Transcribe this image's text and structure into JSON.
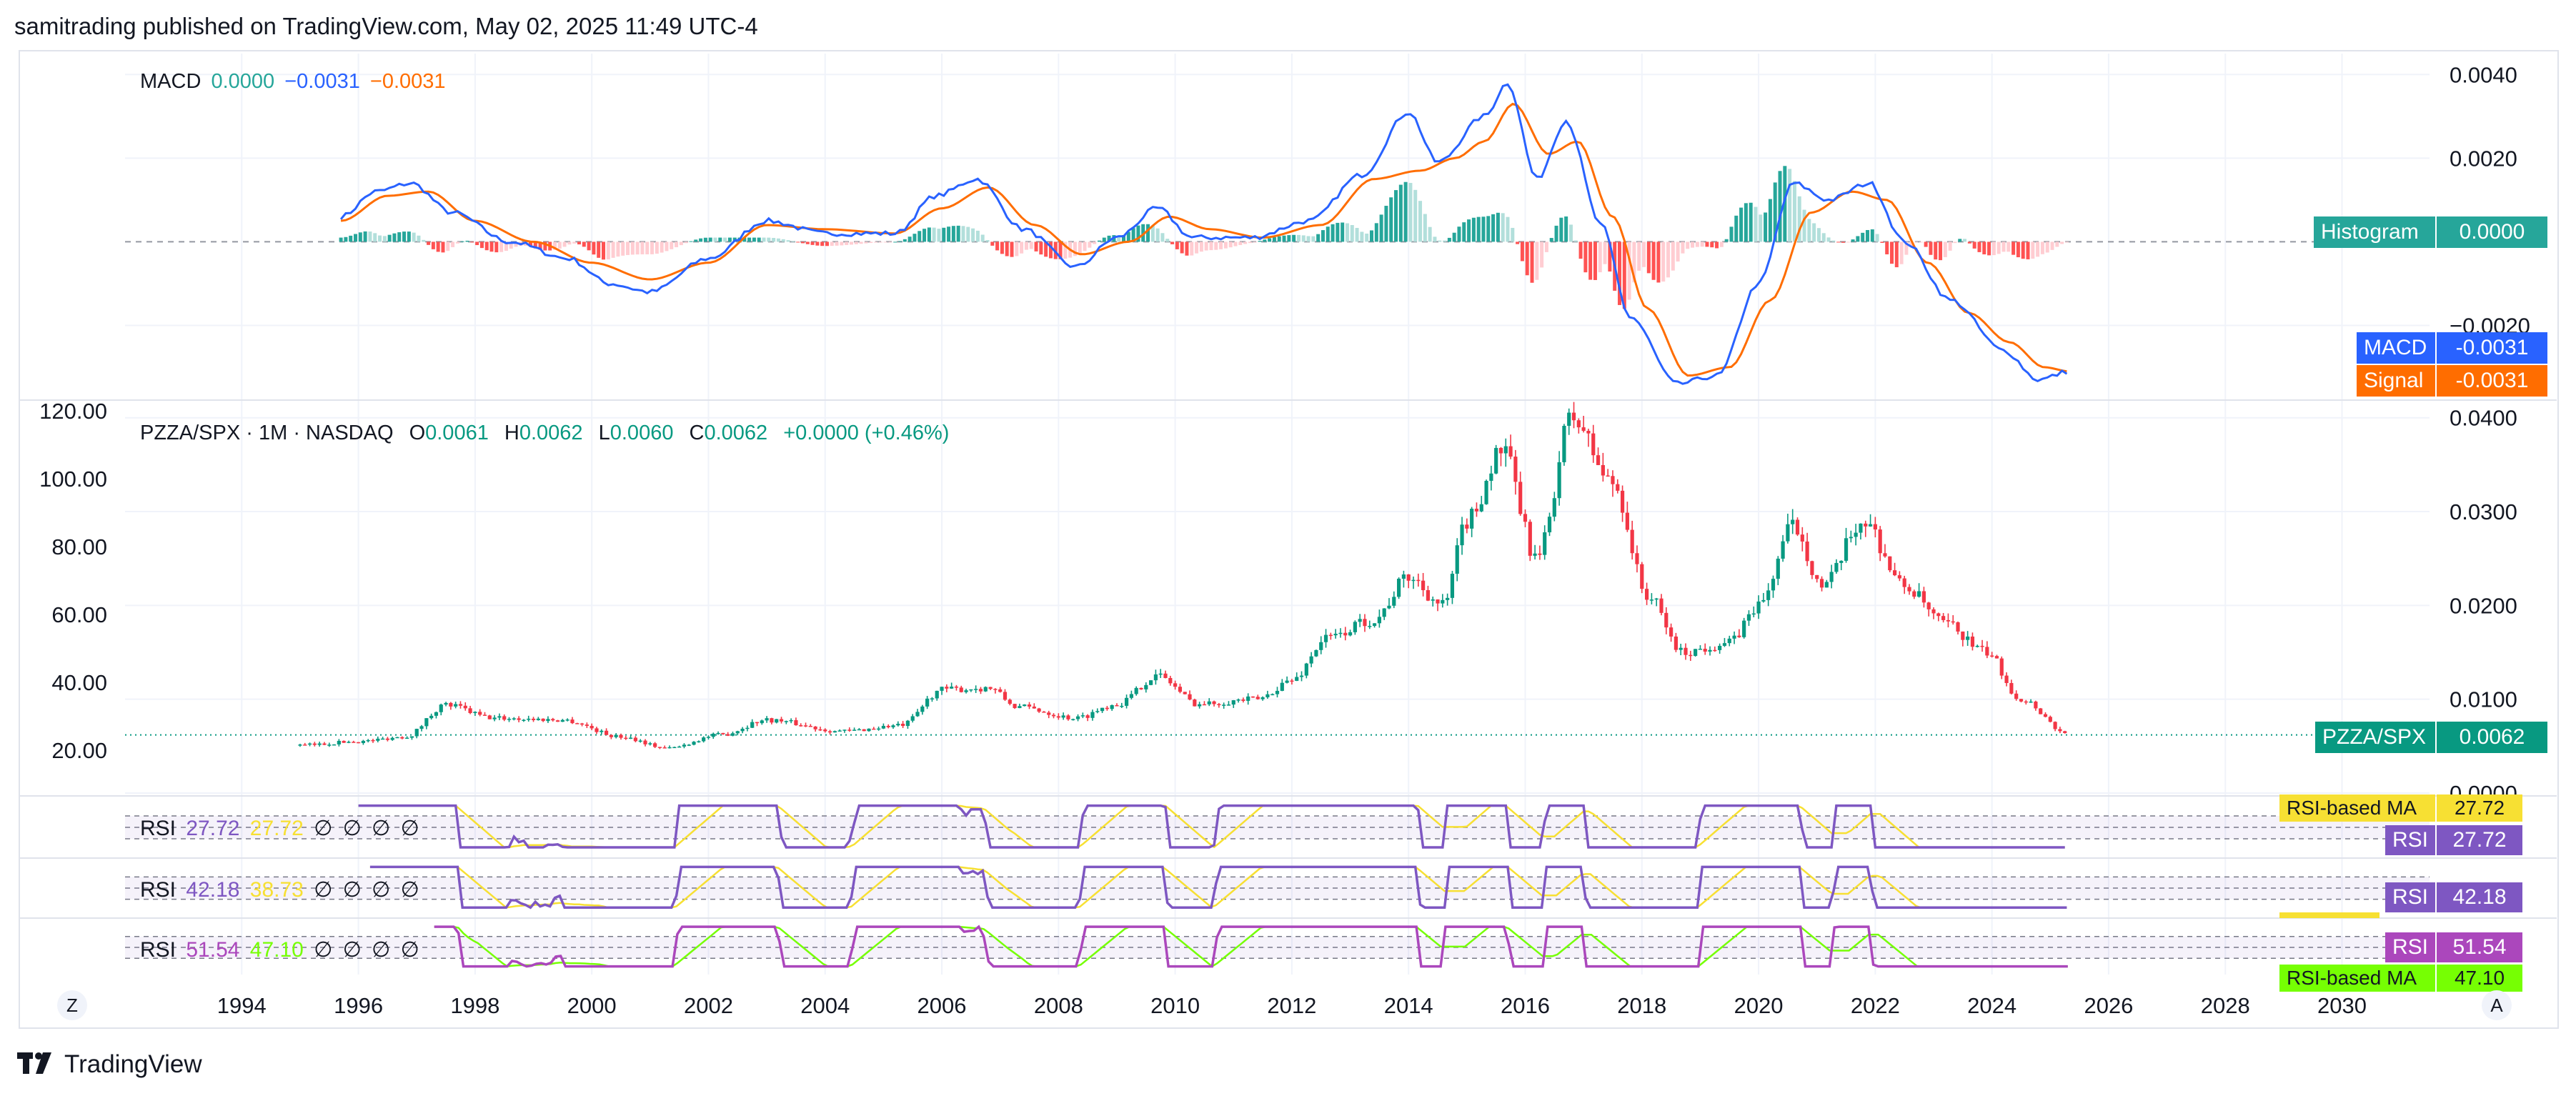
{
  "header": {
    "published": "samitrading published on TradingView.com, May 02, 2025 11:49 UTC-4"
  },
  "footer": {
    "brand": "TradingView",
    "logo": "TV-logo-icon"
  },
  "corners": {
    "left": "Z",
    "right": "A"
  },
  "colors": {
    "up": "#089981",
    "down": "#f23645",
    "macd": "#2962ff",
    "signal": "#ff6d00",
    "rsi": "#7e57c2",
    "rsi_ma": "#f7e033",
    "rsi3": "#ab47bc",
    "rsi3_ma": "#76ff03",
    "hist_up_strong": "#26a69a",
    "hist_up_weak": "#b2dfdb",
    "hist_down_strong": "#ff5252",
    "hist_down_weak": "#ffcdd2"
  },
  "macd_legend": {
    "name": "MACD",
    "hist": "0.0000",
    "macd": "−0.0031",
    "signal": "−0.0031"
  },
  "main_legend": {
    "symbol": "PZZA/SPX · 1M · NASDAQ",
    "o_label": "O",
    "o": "0.0061",
    "h_label": "H",
    "h": "0.0062",
    "l_label": "L",
    "l": "0.0060",
    "c_label": "C",
    "c": "0.0062",
    "change": "+0.0000 (+0.46%)"
  },
  "rsi_panes": [
    {
      "name": "RSI",
      "value": "27.72",
      "ma": "27.72",
      "dots": [
        "∅",
        "∅",
        "∅",
        "∅"
      ],
      "tag_ma_label": "RSI-based MA",
      "tag_ma_value": "27.72",
      "tag_rsi_label": "RSI",
      "tag_rsi_value": "27.72"
    },
    {
      "name": "RSI",
      "value": "42.18",
      "ma": "38.73",
      "dots": [
        "∅",
        "∅",
        "∅",
        "∅"
      ],
      "tag_rsi_label": "RSI",
      "tag_rsi_value": "42.18"
    },
    {
      "name": "RSI",
      "value": "51.54",
      "ma": "47.10",
      "dots": [
        "∅",
        "∅",
        "∅",
        "∅"
      ],
      "tag_ma_label": "RSI-based MA",
      "tag_ma_value": "47.10",
      "tag_rsi_label": "RSI",
      "tag_rsi_value": "51.54"
    }
  ],
  "price_tags": {
    "histogram_label": "Histogram",
    "histogram_value": "0.0000",
    "macd_label": "MACD",
    "macd_value": "-0.0031",
    "signal_label": "Signal",
    "signal_value": "-0.0031",
    "main_label": "PZZA/SPX",
    "main_value": "0.0062"
  },
  "chart_data": {
    "type": "candlestick",
    "x_axis": {
      "ticks": [
        "1994",
        "1996",
        "1998",
        "2000",
        "2002",
        "2004",
        "2006",
        "2008",
        "2010",
        "2012",
        "2014",
        "2016",
        "2018",
        "2020",
        "2022",
        "2024",
        "2026",
        "2028",
        "2030"
      ],
      "range": [
        1992.0,
        2031.5
      ]
    },
    "main": {
      "series_name": "PZZA/SPX",
      "right_ticks": [
        "0.0400",
        "0.0300",
        "0.0200",
        "0.0100",
        "0.0000"
      ],
      "right_tick_values": [
        0.04,
        0.03,
        0.02,
        0.01,
        0.0
      ],
      "left_ticks": [
        "120.00",
        "100.00",
        "80.00",
        "60.00",
        "40.00",
        "20.00"
      ],
      "ylim": [
        0.0,
        0.0415
      ],
      "last": 0.0062,
      "anchors": [
        [
          1995.0,
          0.0051
        ],
        [
          1996.0,
          0.0055
        ],
        [
          1996.8,
          0.006
        ],
        [
          1997.5,
          0.0094
        ],
        [
          1998.3,
          0.008
        ],
        [
          1999.5,
          0.0078
        ],
        [
          2000.5,
          0.006
        ],
        [
          2001.3,
          0.0048
        ],
        [
          2002.2,
          0.0062
        ],
        [
          2003.0,
          0.0078
        ],
        [
          2004.3,
          0.0066
        ],
        [
          2005.3,
          0.0072
        ],
        [
          2006.0,
          0.011
        ],
        [
          2006.8,
          0.0112
        ],
        [
          2007.3,
          0.0092
        ],
        [
          2008.3,
          0.008
        ],
        [
          2009.0,
          0.0095
        ],
        [
          2009.7,
          0.0125
        ],
        [
          2010.4,
          0.0095
        ],
        [
          2011.4,
          0.01
        ],
        [
          2012.0,
          0.012
        ],
        [
          2012.6,
          0.0165
        ],
        [
          2013.4,
          0.0185
        ],
        [
          2014.0,
          0.023
        ],
        [
          2014.6,
          0.02
        ],
        [
          2015.0,
          0.029
        ],
        [
          2015.6,
          0.0365
        ],
        [
          2016.2,
          0.025
        ],
        [
          2016.8,
          0.04
        ],
        [
          2017.5,
          0.033
        ],
        [
          2018.1,
          0.021
        ],
        [
          2018.7,
          0.015
        ],
        [
          2019.5,
          0.016
        ],
        [
          2020.0,
          0.02
        ],
        [
          2020.6,
          0.0285
        ],
        [
          2021.1,
          0.022
        ],
        [
          2021.8,
          0.029
        ],
        [
          2022.5,
          0.022
        ],
        [
          2023.2,
          0.018
        ],
        [
          2023.9,
          0.015
        ],
        [
          2024.5,
          0.01
        ],
        [
          2025.33,
          0.0062
        ]
      ]
    },
    "macd": {
      "right_ticks": [
        "0.0040",
        "0.0020",
        "−0.0020"
      ],
      "right_tick_values": [
        0.004,
        0.002,
        -0.002
      ],
      "ylim": [
        -0.0037,
        0.0045
      ],
      "macd_anchors": [
        [
          1995.7,
          0.0006
        ],
        [
          1996.3,
          0.0012
        ],
        [
          1996.9,
          0.0014
        ],
        [
          1997.6,
          0.0007
        ],
        [
          1998.6,
          0.0
        ],
        [
          1999.6,
          -0.0004
        ],
        [
          2000.3,
          -0.001
        ],
        [
          2001.0,
          -0.0012
        ],
        [
          2002.0,
          -0.0004
        ],
        [
          2003.0,
          0.0005
        ],
        [
          2004.0,
          0.0002
        ],
        [
          2005.2,
          0.0002
        ],
        [
          2005.9,
          0.0011
        ],
        [
          2006.6,
          0.0015
        ],
        [
          2007.4,
          0.0003
        ],
        [
          2008.3,
          -0.0006
        ],
        [
          2009.0,
          0.0001
        ],
        [
          2009.7,
          0.0008
        ],
        [
          2010.3,
          0.0001
        ],
        [
          2011.3,
          0.0001
        ],
        [
          2012.3,
          0.0005
        ],
        [
          2013.2,
          0.0016
        ],
        [
          2014.0,
          0.0031
        ],
        [
          2014.5,
          0.0019
        ],
        [
          2015.3,
          0.003
        ],
        [
          2015.7,
          0.0038
        ],
        [
          2016.2,
          0.0015
        ],
        [
          2016.7,
          0.0029
        ],
        [
          2017.3,
          0.0004
        ],
        [
          2017.8,
          -0.0018
        ],
        [
          2018.6,
          -0.0034
        ],
        [
          2019.3,
          -0.0032
        ],
        [
          2020.0,
          -0.001
        ],
        [
          2020.6,
          0.0014
        ],
        [
          2021.2,
          0.001
        ],
        [
          2021.9,
          0.0014
        ],
        [
          2022.5,
          0.0
        ],
        [
          2023.3,
          -0.0014
        ],
        [
          2024.2,
          -0.0026
        ],
        [
          2024.8,
          -0.0033
        ],
        [
          2025.33,
          -0.0031
        ]
      ],
      "signal_anchors": [
        [
          1995.7,
          0.0005
        ],
        [
          1996.5,
          0.0011
        ],
        [
          1997.2,
          0.0012
        ],
        [
          1998.0,
          0.0005
        ],
        [
          1999.0,
          0.0
        ],
        [
          2000.0,
          -0.0005
        ],
        [
          2001.0,
          -0.0009
        ],
        [
          2002.0,
          -0.0005
        ],
        [
          2003.0,
          0.0004
        ],
        [
          2004.0,
          0.0003
        ],
        [
          2005.2,
          0.0002
        ],
        [
          2006.0,
          0.0008
        ],
        [
          2006.8,
          0.0013
        ],
        [
          2007.6,
          0.0004
        ],
        [
          2008.4,
          -0.0003
        ],
        [
          2009.2,
          0.0
        ],
        [
          2009.9,
          0.0006
        ],
        [
          2010.6,
          0.0003
        ],
        [
          2011.5,
          0.0001
        ],
        [
          2012.5,
          0.0004
        ],
        [
          2013.4,
          0.0015
        ],
        [
          2014.2,
          0.0017
        ],
        [
          2014.8,
          0.002
        ],
        [
          2015.3,
          0.0024
        ],
        [
          2015.8,
          0.0033
        ],
        [
          2016.4,
          0.0021
        ],
        [
          2016.9,
          0.0024
        ],
        [
          2017.5,
          0.0006
        ],
        [
          2018.1,
          -0.0016
        ],
        [
          2018.8,
          -0.0032
        ],
        [
          2019.5,
          -0.003
        ],
        [
          2020.2,
          -0.0014
        ],
        [
          2020.9,
          0.0007
        ],
        [
          2021.6,
          0.0012
        ],
        [
          2022.2,
          0.001
        ],
        [
          2022.9,
          -0.0005
        ],
        [
          2023.6,
          -0.0017
        ],
        [
          2024.3,
          -0.0024
        ],
        [
          2024.9,
          -0.003
        ],
        [
          2025.33,
          -0.0031
        ]
      ]
    },
    "rsi": {
      "ylim": [
        0,
        100
      ],
      "bands": [
        30,
        50,
        70
      ]
    }
  }
}
